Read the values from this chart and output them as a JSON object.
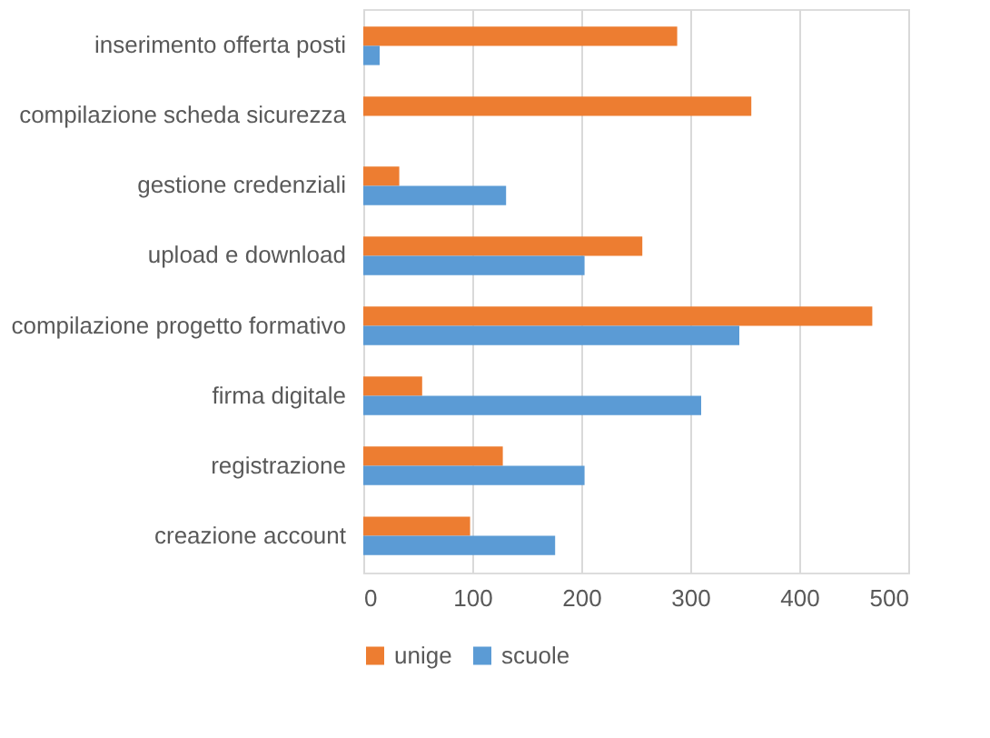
{
  "chart_data": {
    "type": "bar",
    "orientation": "horizontal",
    "categories": [
      "inserimento offerta posti",
      "compilazione scheda sicurezza",
      "gestione credenziali",
      "upload e download",
      "compilazione progetto formativo",
      "firma digitale",
      "registrazione",
      "creazione account"
    ],
    "series": [
      {
        "name": "unige",
        "color": "#ed7d31",
        "values": [
          288,
          356,
          33,
          256,
          467,
          54,
          128,
          98
        ]
      },
      {
        "name": "scuole",
        "color": "#5b9bd5",
        "values": [
          15,
          null,
          131,
          203,
          345,
          310,
          203,
          176
        ]
      }
    ],
    "xlim": [
      0,
      500
    ],
    "xticks": [
      0,
      100,
      200,
      300,
      400,
      500
    ],
    "grid": "x",
    "legend": "bottom"
  }
}
